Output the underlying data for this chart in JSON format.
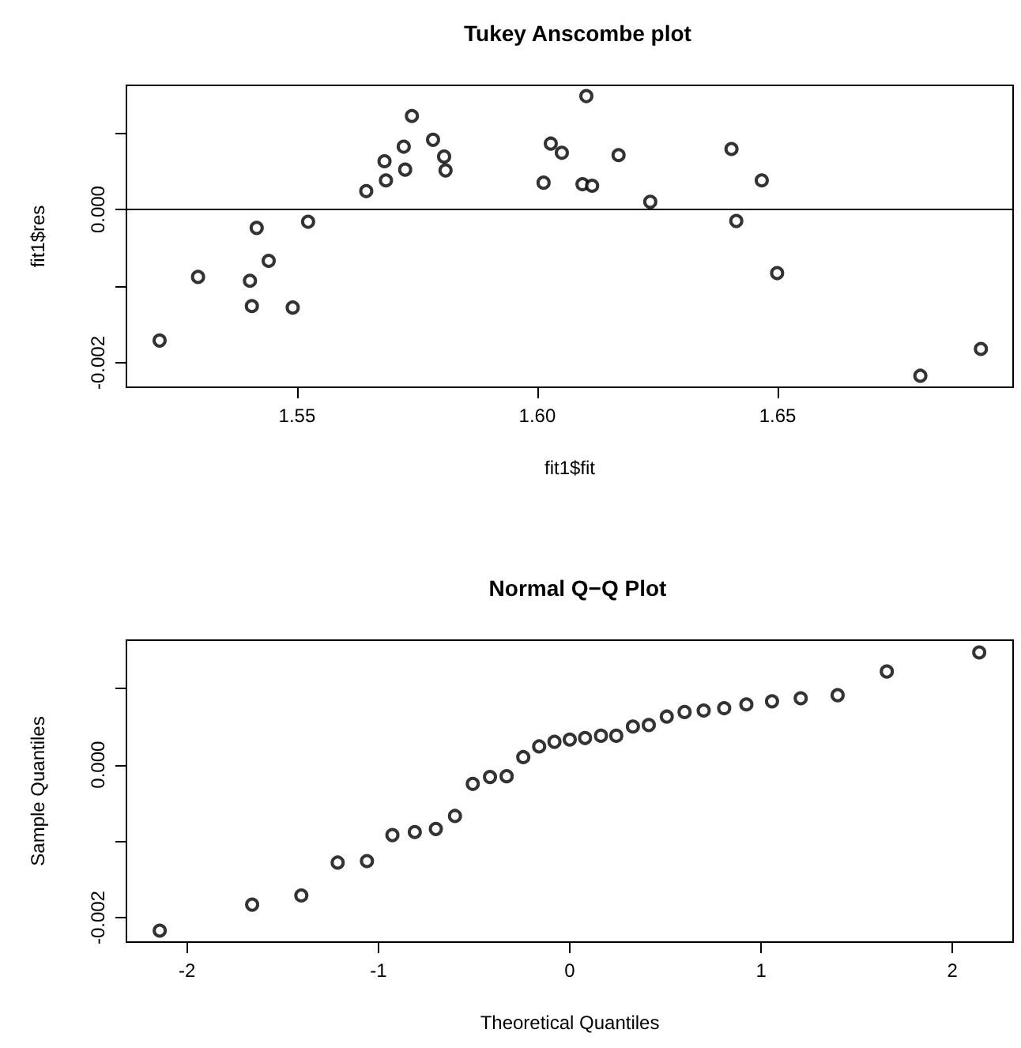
{
  "chart_data": [
    {
      "type": "scatter",
      "title": "Tukey Anscombe plot",
      "xlabel": "fit1$fit",
      "ylabel": "fit1$res",
      "marker": "circle",
      "grid": false,
      "xlim": [
        1.5145,
        1.699
      ],
      "ylim": [
        -0.00232,
        0.00162
      ],
      "xticks": [
        1.55,
        {
          "value": 1.6,
          "label": "1.60"
        },
        1.65
      ],
      "yticks": [
        {
          "value": -0.002,
          "label": "-0.002"
        },
        {
          "value": -0.001,
          "label": null
        },
        {
          "value": 0,
          "label": "0.000"
        },
        {
          "value": 0.001,
          "label": null
        }
      ],
      "ref_lines": [
        {
          "axis": "y",
          "value": 0,
          "color": "#000000"
        }
      ],
      "series": [
        {
          "color": "#000000",
          "x": [
            1.5214,
            1.5294,
            1.5402,
            1.5406,
            1.5416,
            1.5441,
            1.5491,
            1.5523,
            1.5644,
            1.5682,
            1.5685,
            1.5722,
            1.5725,
            1.5739,
            1.5783,
            1.5806,
            1.5809,
            1.6013,
            1.6028,
            1.6051,
            1.6094,
            1.6102,
            1.6114,
            1.6169,
            1.6235,
            1.6404,
            1.6414,
            1.6467,
            1.6499,
            1.6797,
            1.6923
          ],
          "values": [
            -0.00171,
            -0.00088,
            -0.00093,
            -0.00126,
            -0.00024,
            -0.00067,
            -0.00128,
            -0.00016,
            0.00024,
            0.00063,
            0.00038,
            0.00082,
            0.00052,
            0.00122,
            0.00091,
            0.00069,
            0.00051,
            0.00035,
            0.00086,
            0.00074,
            0.00033,
            0.00148,
            0.00031,
            0.00071,
            0.0001,
            0.00079,
            -0.00015,
            0.00038,
            -0.00083,
            -0.00217,
            -0.00182
          ]
        }
      ]
    },
    {
      "type": "scatter",
      "title": "Normal Q−Q Plot",
      "xlabel": "Theoretical Quantiles",
      "ylabel": "Sample Quantiles",
      "marker": "circle",
      "grid": false,
      "xlim": [
        -2.317,
        2.317
      ],
      "ylim": [
        -0.00232,
        0.00163
      ],
      "xticks": [
        -2,
        -1,
        0,
        1,
        2
      ],
      "yticks": [
        {
          "value": -0.002,
          "label": "-0.002"
        },
        {
          "value": -0.001,
          "label": null
        },
        {
          "value": 0,
          "label": "0.000"
        },
        {
          "value": 0.001,
          "label": null
        }
      ],
      "series": [
        {
          "color": "#000000",
          "x": [
            -2.143,
            -1.66,
            -1.403,
            -1.213,
            -1.06,
            -0.927,
            -0.81,
            -0.7,
            -0.6,
            -0.507,
            -0.417,
            -0.33,
            -0.243,
            -0.16,
            -0.08,
            0,
            0.08,
            0.163,
            0.243,
            0.33,
            0.413,
            0.507,
            0.6,
            0.7,
            0.807,
            0.923,
            1.057,
            1.207,
            1.4,
            1.657,
            2.14
          ],
          "values": [
            -0.00217,
            -0.00183,
            -0.00171,
            -0.00128,
            -0.00126,
            -0.00092,
            -0.00088,
            -0.00084,
            -0.00067,
            -0.00025,
            -0.00016,
            -0.00015,
            0.0001,
            0.00024,
            0.0003,
            0.00033,
            0.00035,
            0.00038,
            0.00038,
            0.0005,
            0.00052,
            0.00063,
            0.00069,
            0.00071,
            0.00074,
            0.00079,
            0.00083,
            0.00087,
            0.00091,
            0.00122,
            0.00147
          ]
        }
      ]
    }
  ]
}
